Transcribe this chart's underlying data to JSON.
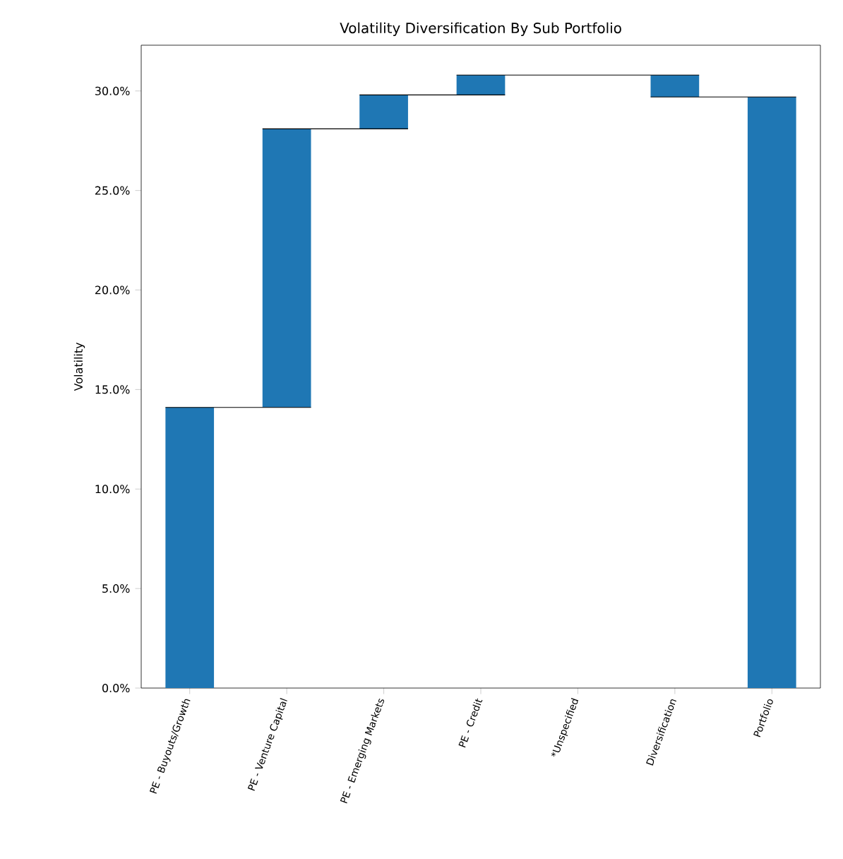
{
  "chart_data": {
    "type": "bar",
    "title": "Volatility Diversification By Sub Portfolio",
    "ylabel": "Volatility",
    "categories": [
      "PE - Buyouts/Growth",
      "PE - Venture Capital",
      "PE - Emerging Markets",
      "PE - Credit",
      "*Unspecified",
      "Diversification",
      "Portfolio"
    ],
    "values": [
      14.1,
      14.0,
      1.7,
      1.0,
      null,
      -1.1,
      29.7
    ],
    "base": [
      0,
      14.1,
      28.1,
      29.8,
      null,
      30.8,
      0
    ],
    "color": "#1f77b4",
    "ylim": [
      0,
      32.3
    ],
    "yticks": [
      {
        "value": 0,
        "label": "0.0%"
      },
      {
        "value": 5,
        "label": "5.0%"
      },
      {
        "value": 10,
        "label": "10.0%"
      },
      {
        "value": 15,
        "label": "15.0%"
      },
      {
        "value": 20,
        "label": "20.0%"
      },
      {
        "value": 25,
        "label": "25.0%"
      },
      {
        "value": 30,
        "label": "30.0%"
      }
    ]
  }
}
